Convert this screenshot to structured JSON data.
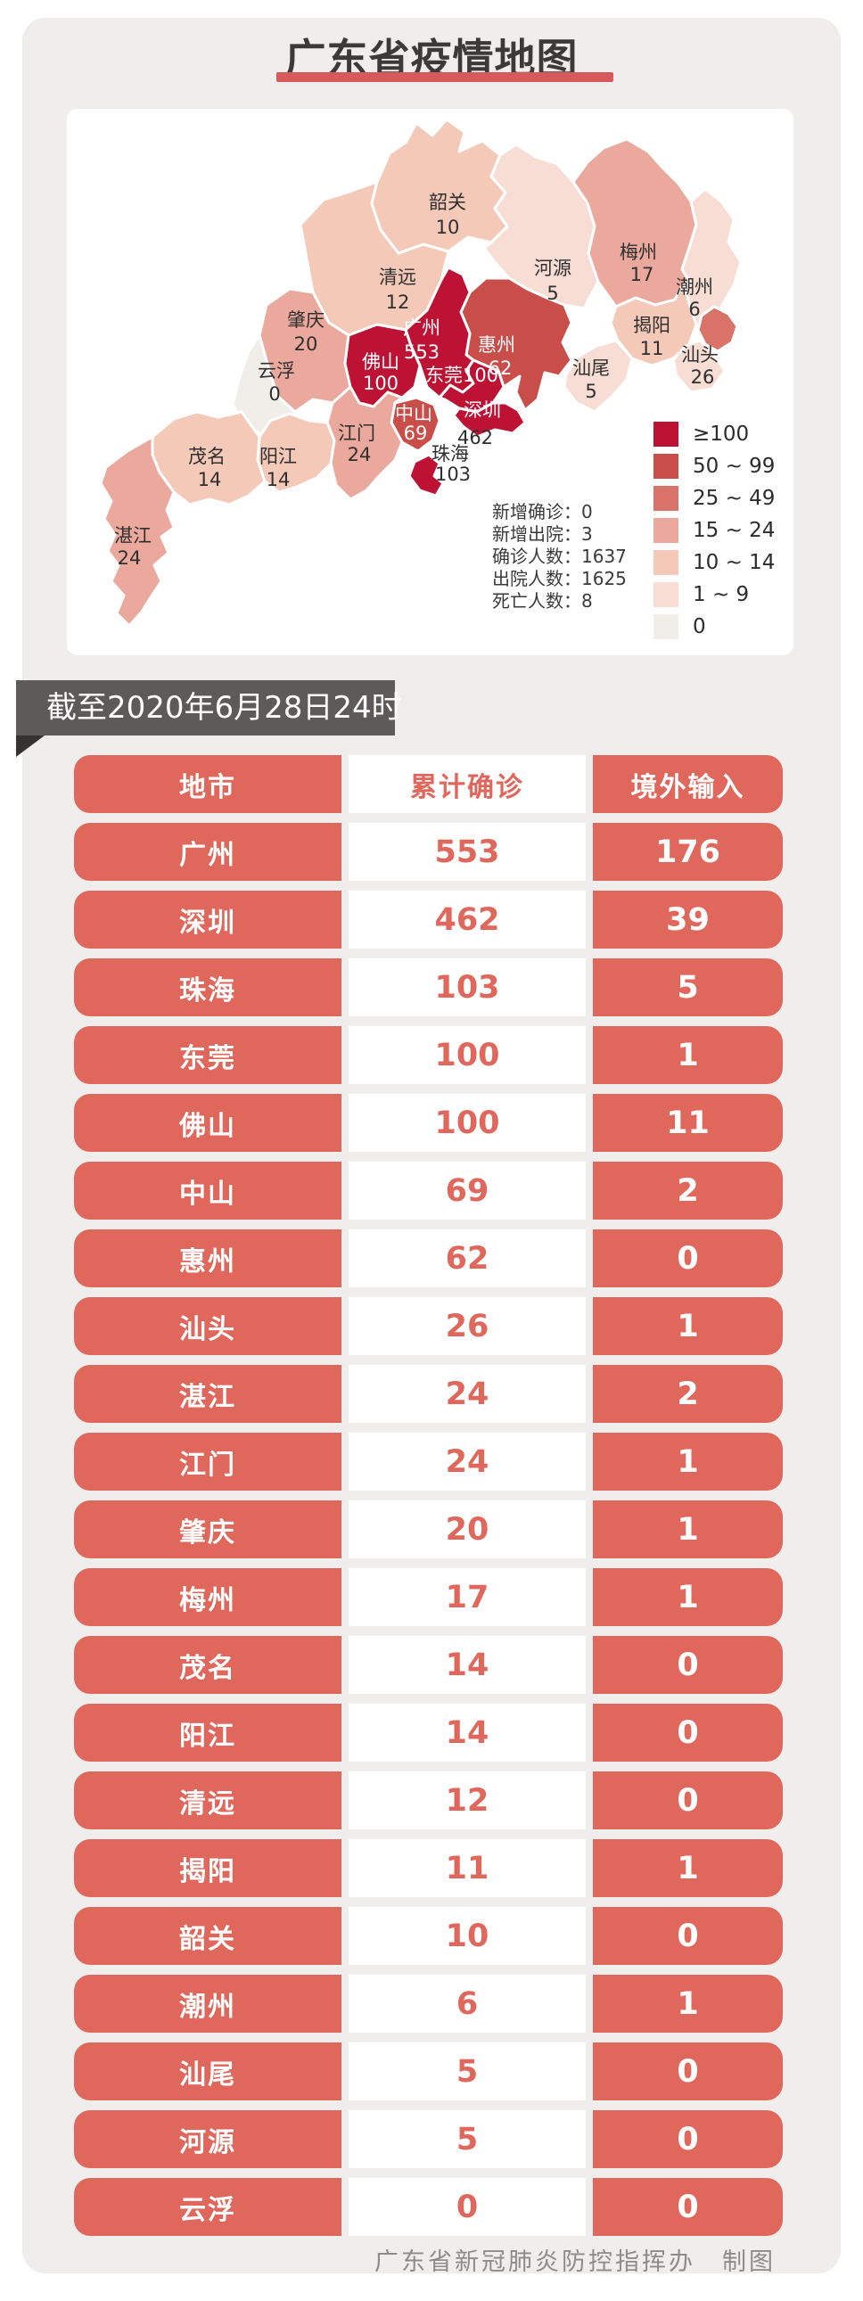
{
  "header": {
    "title": "广东省疫情地图"
  },
  "banner": {
    "text": "截至2020年6月28日24时"
  },
  "map": {
    "colon": "：",
    "stats": [
      {
        "label": "新增确诊",
        "value": "0"
      },
      {
        "label": "新增出院",
        "value": "3"
      },
      {
        "label": "确诊人数",
        "value": "1637"
      },
      {
        "label": "出院人数",
        "value": "1625"
      },
      {
        "label": "死亡人数",
        "value": "8"
      }
    ],
    "legend": [
      {
        "label": "≥100",
        "color": "#bd1233"
      },
      {
        "label": "50 ~ 99",
        "color": "#c94d49"
      },
      {
        "label": "25 ~ 49",
        "color": "#d97268"
      },
      {
        "label": "15 ~ 24",
        "color": "#eba89c"
      },
      {
        "label": "10 ~ 14",
        "color": "#f4c9b8"
      },
      {
        "label": "1 ~ 9",
        "color": "#f8ddd4"
      },
      {
        "label": "0",
        "color": "#f1eeea"
      }
    ],
    "cities": [
      {
        "id": "shaoguan",
        "name": "韶关",
        "value": 10,
        "nx": 427,
        "ny": 112,
        "vx": 427,
        "vy": 140,
        "name_light": false,
        "value_light": false,
        "inline": false
      },
      {
        "id": "qingyuan",
        "name": "清远",
        "value": 12,
        "nx": 371,
        "ny": 196,
        "vx": 371,
        "vy": 224,
        "name_light": false,
        "value_light": false,
        "inline": false
      },
      {
        "id": "heyuan",
        "name": "河源",
        "value": 5,
        "nx": 545,
        "ny": 186,
        "vx": 545,
        "vy": 214,
        "name_light": false,
        "value_light": false,
        "inline": false
      },
      {
        "id": "meizhou",
        "name": "梅州",
        "value": 17,
        "nx": 641,
        "ny": 168,
        "vx": 645,
        "vy": 193,
        "name_light": false,
        "value_light": false,
        "inline": false
      },
      {
        "id": "chaozhou",
        "name": "潮州",
        "value": 6,
        "nx": 704,
        "ny": 207,
        "vx": 704,
        "vy": 232,
        "name_light": false,
        "value_light": false,
        "inline": false
      },
      {
        "id": "jieyang",
        "name": "揭阳",
        "value": 11,
        "nx": 656,
        "ny": 250,
        "vx": 656,
        "vy": 276,
        "name_light": false,
        "value_light": false,
        "inline": false
      },
      {
        "id": "shantou",
        "name": "汕头",
        "value": 26,
        "nx": 710,
        "ny": 283,
        "vx": 713,
        "vy": 308,
        "name_light": false,
        "value_light": false,
        "inline": false
      },
      {
        "id": "shanwei",
        "name": "汕尾",
        "value": 5,
        "nx": 588,
        "ny": 298,
        "vx": 588,
        "vy": 324,
        "name_light": false,
        "value_light": false,
        "inline": false
      },
      {
        "id": "huizhou",
        "name": "惠州",
        "value": 62,
        "nx": 482,
        "ny": 272,
        "vx": 486,
        "vy": 298,
        "name_light": true,
        "value_light": true,
        "inline": false
      },
      {
        "id": "guangzhou",
        "name": "广州",
        "value": 553,
        "nx": 398,
        "ny": 253,
        "vx": 398,
        "vy": 280,
        "name_light": true,
        "value_light": true,
        "inline": false
      },
      {
        "id": "dongguan",
        "name": "东莞",
        "value": 100,
        "nx": 443,
        "ny": 306,
        "vx": 443,
        "vy": 306,
        "name_light": true,
        "value_light": true,
        "inline": true
      },
      {
        "id": "shenzhen",
        "name": "深圳",
        "value": 462,
        "nx": 466,
        "ny": 345,
        "vx": 458,
        "vy": 376,
        "name_light": true,
        "value_light": false,
        "inline": false
      },
      {
        "id": "zhongshan",
        "name": "中山",
        "value": 69,
        "nx": 389,
        "ny": 349,
        "vx": 391,
        "vy": 371,
        "name_light": true,
        "value_light": true,
        "inline": false
      },
      {
        "id": "zhuhai",
        "name": "珠海",
        "value": 103,
        "nx": 430,
        "ny": 394,
        "vx": 433,
        "vy": 417,
        "name_light": false,
        "value_light": false,
        "inline": false
      },
      {
        "id": "foshan",
        "name": "佛山",
        "value": 100,
        "nx": 352,
        "ny": 291,
        "vx": 352,
        "vy": 315,
        "name_light": true,
        "value_light": true,
        "inline": false
      },
      {
        "id": "jiangmen",
        "name": "江门",
        "value": 24,
        "nx": 325,
        "ny": 371,
        "vx": 328,
        "vy": 395,
        "name_light": false,
        "value_light": false,
        "inline": false
      },
      {
        "id": "zhaoqing",
        "name": "肇庆",
        "value": 20,
        "nx": 268,
        "ny": 244,
        "vx": 268,
        "vy": 271,
        "name_light": false,
        "value_light": false,
        "inline": false
      },
      {
        "id": "yunfu",
        "name": "云浮",
        "value": 0,
        "nx": 235,
        "ny": 301,
        "vx": 233,
        "vy": 327,
        "name_light": false,
        "value_light": false,
        "inline": false
      },
      {
        "id": "maoming",
        "name": "茂名",
        "value": 14,
        "nx": 157,
        "ny": 397,
        "vx": 160,
        "vy": 423,
        "name_light": false,
        "value_light": false,
        "inline": false
      },
      {
        "id": "yangjiang",
        "name": "阳江",
        "value": 14,
        "nx": 237,
        "ny": 397,
        "vx": 237,
        "vy": 423,
        "name_light": false,
        "value_light": false,
        "inline": false
      },
      {
        "id": "zhanjiang",
        "name": "湛江",
        "value": 24,
        "nx": 74,
        "ny": 486,
        "vx": 70,
        "vy": 511,
        "name_light": false,
        "value_light": false,
        "inline": false
      }
    ]
  },
  "table": {
    "headers": [
      "地市",
      "累计确诊",
      "境外输入"
    ],
    "rows": [
      {
        "city": "广州",
        "confirmed": 553,
        "imported": 176
      },
      {
        "city": "深圳",
        "confirmed": 462,
        "imported": 39
      },
      {
        "city": "珠海",
        "confirmed": 103,
        "imported": 5
      },
      {
        "city": "东莞",
        "confirmed": 100,
        "imported": 1
      },
      {
        "city": "佛山",
        "confirmed": 100,
        "imported": 11
      },
      {
        "city": "中山",
        "confirmed": 69,
        "imported": 2
      },
      {
        "city": "惠州",
        "confirmed": 62,
        "imported": 0
      },
      {
        "city": "汕头",
        "confirmed": 26,
        "imported": 1
      },
      {
        "city": "湛江",
        "confirmed": 24,
        "imported": 2
      },
      {
        "city": "江门",
        "confirmed": 24,
        "imported": 1
      },
      {
        "city": "肇庆",
        "confirmed": 20,
        "imported": 1
      },
      {
        "city": "梅州",
        "confirmed": 17,
        "imported": 1
      },
      {
        "city": "茂名",
        "confirmed": 14,
        "imported": 0
      },
      {
        "city": "阳江",
        "confirmed": 14,
        "imported": 0
      },
      {
        "city": "清远",
        "confirmed": 12,
        "imported": 0
      },
      {
        "city": "揭阳",
        "confirmed": 11,
        "imported": 1
      },
      {
        "city": "韶关",
        "confirmed": 10,
        "imported": 0
      },
      {
        "city": "潮州",
        "confirmed": 6,
        "imported": 1
      },
      {
        "city": "汕尾",
        "confirmed": 5,
        "imported": 0
      },
      {
        "city": "河源",
        "confirmed": 5,
        "imported": 0
      },
      {
        "city": "云浮",
        "confirmed": 0,
        "imported": 0
      }
    ]
  },
  "footer": {
    "credit": "广东省新冠肺炎防控指挥办　制图"
  },
  "chart_data": {
    "type": "choropleth_map_and_table",
    "title": "广东省疫情地图",
    "as_of": "截至2020年6月28日24时",
    "categories": [
      "广州",
      "深圳",
      "珠海",
      "东莞",
      "佛山",
      "中山",
      "惠州",
      "汕头",
      "湛江",
      "江门",
      "肇庆",
      "梅州",
      "茂名",
      "阳江",
      "清远",
      "揭阳",
      "韶关",
      "潮州",
      "汕尾",
      "河源",
      "云浮"
    ],
    "series": [
      {
        "name": "累计确诊",
        "values": [
          553,
          462,
          103,
          100,
          100,
          69,
          62,
          26,
          24,
          24,
          20,
          17,
          14,
          14,
          12,
          11,
          10,
          6,
          5,
          5,
          0
        ]
      },
      {
        "name": "境外输入",
        "values": [
          176,
          39,
          5,
          1,
          11,
          2,
          0,
          1,
          2,
          1,
          1,
          1,
          0,
          0,
          0,
          1,
          0,
          1,
          0,
          0,
          0
        ]
      }
    ],
    "summary": {
      "新增确诊": 0,
      "新增出院": 3,
      "确诊人数": 1637,
      "出院人数": 1625,
      "死亡人数": 8
    },
    "legend_buckets": [
      "≥100",
      "50~99",
      "25~49",
      "15~24",
      "10~14",
      "1~9",
      "0"
    ],
    "legend_position": "right-bottom-of-map"
  }
}
